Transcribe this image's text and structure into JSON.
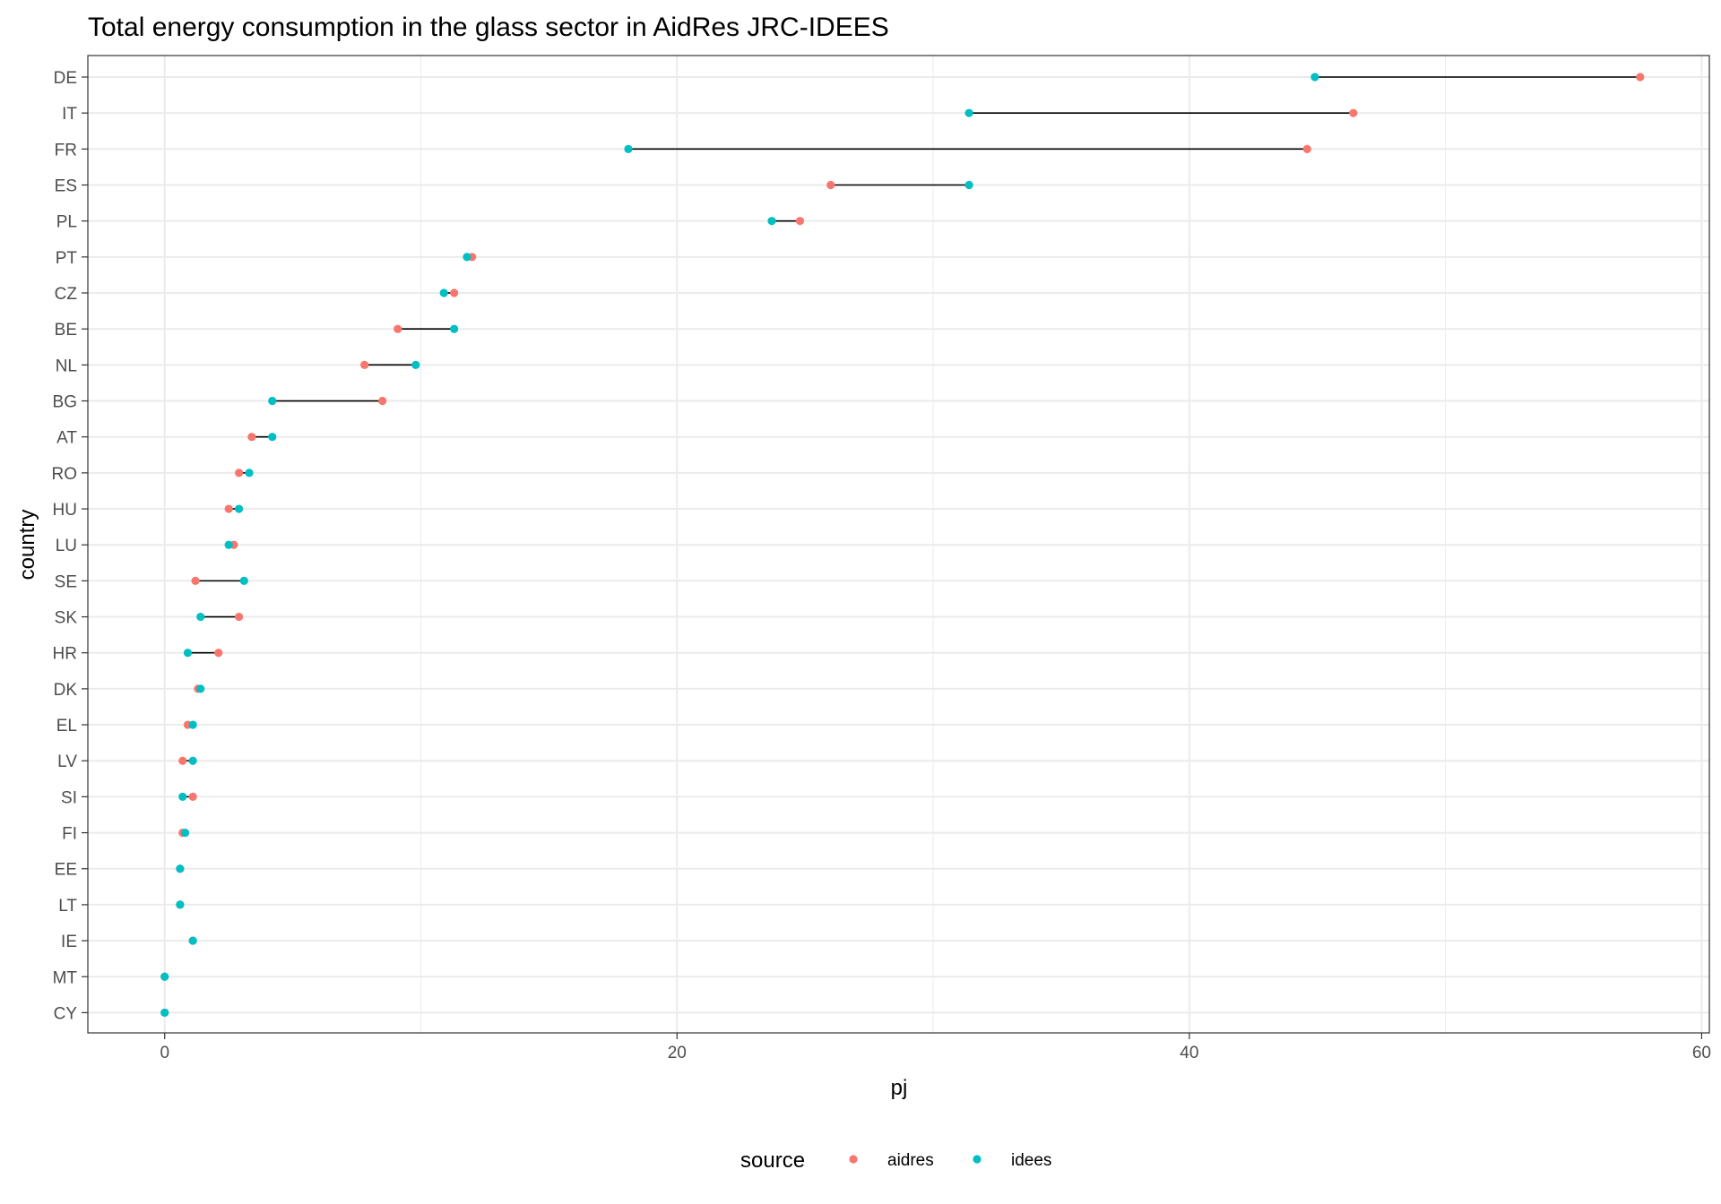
{
  "chart_data": {
    "type": "scatter",
    "subtype": "dumbbell",
    "title": "Total energy consumption in the glass sector in AidRes JRC-IDEES",
    "xlabel": "pj",
    "ylabel": "country",
    "xlim": [
      -3,
      60.3
    ],
    "x_ticks": [
      0,
      20,
      40,
      60
    ],
    "grid": true,
    "legend": {
      "title": "source",
      "position": "bottom"
    },
    "categories": [
      "DE",
      "IT",
      "FR",
      "ES",
      "PL",
      "PT",
      "CZ",
      "BE",
      "NL",
      "BG",
      "AT",
      "RO",
      "HU",
      "LU",
      "SE",
      "SK",
      "HR",
      "DK",
      "EL",
      "LV",
      "SI",
      "FI",
      "EE",
      "LT",
      "IE",
      "MT",
      "CY"
    ],
    "series": [
      {
        "name": "aidres",
        "color": "#F8766D",
        "values": [
          57.6,
          46.4,
          44.6,
          26.0,
          24.8,
          12.0,
          11.3,
          9.1,
          7.8,
          8.5,
          3.4,
          2.9,
          2.5,
          2.7,
          1.2,
          2.9,
          2.1,
          1.3,
          0.9,
          0.7,
          1.1,
          0.7,
          0.6,
          0.6,
          1.1,
          0.0,
          0.0
        ]
      },
      {
        "name": "idees",
        "color": "#00BFC4",
        "values": [
          44.9,
          31.4,
          18.1,
          31.4,
          23.7,
          11.8,
          10.9,
          11.3,
          9.8,
          4.2,
          4.2,
          3.3,
          2.9,
          2.5,
          3.1,
          1.4,
          0.9,
          1.4,
          1.1,
          1.1,
          0.7,
          0.8,
          0.6,
          0.6,
          1.1,
          0.0,
          0.0
        ]
      }
    ]
  }
}
